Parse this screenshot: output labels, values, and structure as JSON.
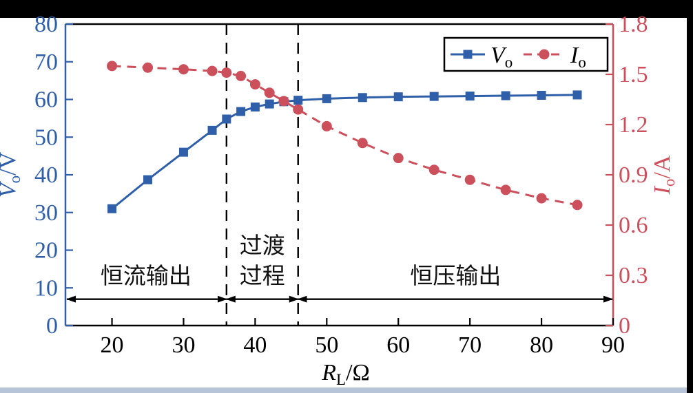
{
  "page": {
    "background": "#ffffff",
    "top_bar_color": "#000000",
    "right_bar_color": "#000000",
    "bottom_bar_color": "#b7c3d7"
  },
  "chart_data": {
    "type": "line",
    "title": "",
    "x": [
      20,
      25,
      30,
      34,
      36,
      38,
      40,
      42,
      44,
      46,
      50,
      55,
      60,
      65,
      70,
      75,
      80,
      85
    ],
    "series": [
      {
        "name": "Vo",
        "legend_main": "V",
        "legend_sub": "o",
        "axis": "left",
        "color": "#2e5fa8",
        "marker": "square",
        "line_style": "solid",
        "values": [
          31,
          38.7,
          46,
          51.8,
          54.8,
          56.8,
          58,
          58.8,
          59.4,
          59.8,
          60.2,
          60.5,
          60.7,
          60.8,
          60.9,
          61,
          61.1,
          61.2
        ]
      },
      {
        "name": "Io",
        "legend_main": "I",
        "legend_sub": "o",
        "axis": "right",
        "color": "#cc4f5c",
        "marker": "circle",
        "line_style": "dashed",
        "values": [
          1.55,
          1.54,
          1.53,
          1.52,
          1.51,
          1.49,
          1.44,
          1.39,
          1.34,
          1.29,
          1.19,
          1.09,
          1.0,
          0.93,
          0.87,
          0.81,
          0.76,
          0.72
        ]
      }
    ],
    "x_axis": {
      "label_main": "R",
      "label_sub": "L",
      "label_unit": "/Ω",
      "range": [
        13.5,
        90
      ],
      "ticks": [
        20,
        30,
        40,
        50,
        60,
        70,
        80,
        90
      ],
      "color": "#000000"
    },
    "left_axis": {
      "label_main": "V",
      "label_sub": "o",
      "label_unit": "/V",
      "range": [
        0,
        80
      ],
      "ticks": [
        0,
        10,
        20,
        30,
        40,
        50,
        60,
        70,
        80
      ],
      "color": "#2e5fa8"
    },
    "right_axis": {
      "label_main": "I",
      "label_sub": "o",
      "label_unit": "/A",
      "range": [
        0,
        1.8
      ],
      "ticks": [
        0,
        0.3,
        0.6,
        0.9,
        1.2,
        1.5,
        1.8
      ],
      "color": "#cc4f5c"
    },
    "grid": false,
    "legend_position": "top-right",
    "annotations": {
      "dashed_vlines_x": [
        36,
        46
      ],
      "arrow_y_left_axis_value": 7,
      "arrow_color": "#000000",
      "text_color": "#111111",
      "regions": [
        {
          "label_lines": [
            "恒流输出"
          ],
          "x_from": 13.5,
          "x_to": 36
        },
        {
          "label_lines": [
            "过渡",
            "过程"
          ],
          "x_from": 36,
          "x_to": 46
        },
        {
          "label_lines": [
            "恒压输出"
          ],
          "x_from": 46,
          "x_to": 90
        }
      ]
    }
  }
}
